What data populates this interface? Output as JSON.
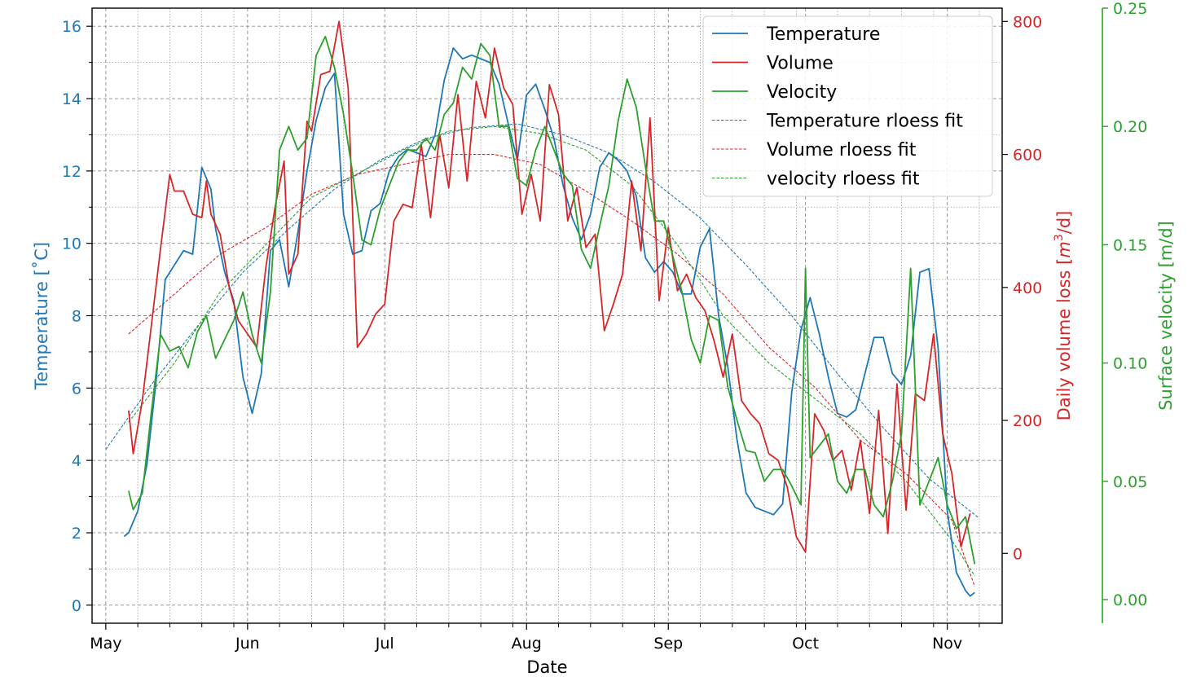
{
  "chart_data": {
    "type": "line",
    "xlabel": "Date",
    "x_tick_labels": [
      "May",
      "Jun",
      "Jul",
      "Aug",
      "Sep",
      "Oct",
      "Nov"
    ],
    "axes": {
      "temperature": {
        "label": "Temperature [˚C]",
        "color": "#1f77b4",
        "ylim": [
          -0.5,
          16.5
        ],
        "ticks": [
          "0",
          "2",
          "4",
          "6",
          "8",
          "10",
          "12",
          "14",
          "16"
        ]
      },
      "volume": {
        "label_prefix": "Daily volume loss [",
        "label_unit": "m",
        "label_sup": "3",
        "label_suffix": "/d]",
        "color": "#d62728",
        "ylim": [
          -105,
          820
        ],
        "ticks": [
          "0",
          "200",
          "400",
          "600",
          "800"
        ]
      },
      "velocity": {
        "label": "Surface velocity [m/d]",
        "color": "#2ca02c",
        "ylim": [
          -0.01,
          0.25
        ],
        "ticks": [
          "0.00",
          "0.05",
          "0.10",
          "0.15",
          "0.20",
          "0.25"
        ]
      }
    },
    "grid": true,
    "legend_position": "top-right",
    "legend": [
      "Temperature",
      "Volume",
      "Velocity",
      "Temperature rloess fit",
      "Volume rloess fit",
      "velocity rloess fit"
    ],
    "series": [
      {
        "name": "Temperature",
        "axis": "temperature",
        "style": "solid",
        "color": "#1f77b4",
        "x": [
          "2019-05-05",
          "2019-05-06",
          "2019-05-08",
          "2019-05-10",
          "2019-05-12",
          "2019-05-14",
          "2019-05-16",
          "2019-05-18",
          "2019-05-20",
          "2019-05-22",
          "2019-05-24",
          "2019-05-25",
          "2019-05-27",
          "2019-05-29",
          "2019-05-31",
          "2019-06-02",
          "2019-06-04",
          "2019-06-06",
          "2019-06-08",
          "2019-06-10",
          "2019-06-12",
          "2019-06-14",
          "2019-06-16",
          "2019-06-18",
          "2019-06-20",
          "2019-06-22",
          "2019-06-24",
          "2019-06-26",
          "2019-06-28",
          "2019-06-30",
          "2019-07-02",
          "2019-07-04",
          "2019-07-06",
          "2019-07-08",
          "2019-07-10",
          "2019-07-12",
          "2019-07-14",
          "2019-07-16",
          "2019-07-18",
          "2019-07-20",
          "2019-07-22",
          "2019-07-24",
          "2019-07-26",
          "2019-07-28",
          "2019-07-30",
          "2019-08-01",
          "2019-08-03",
          "2019-08-05",
          "2019-08-07",
          "2019-08-09",
          "2019-08-11",
          "2019-08-13",
          "2019-08-15",
          "2019-08-17",
          "2019-08-19",
          "2019-08-21",
          "2019-08-23",
          "2019-08-25",
          "2019-08-27",
          "2019-08-29",
          "2019-08-31",
          "2019-09-02",
          "2019-09-04",
          "2019-09-06",
          "2019-09-08",
          "2019-09-10",
          "2019-09-12",
          "2019-09-14",
          "2019-09-16",
          "2019-09-18",
          "2019-09-20",
          "2019-09-22",
          "2019-09-24",
          "2019-09-26",
          "2019-09-28",
          "2019-09-30",
          "2019-10-02",
          "2019-10-04",
          "2019-10-06",
          "2019-10-08",
          "2019-10-10",
          "2019-10-12",
          "2019-10-14",
          "2019-10-16",
          "2019-10-18",
          "2019-10-20",
          "2019-10-22",
          "2019-10-24",
          "2019-10-26",
          "2019-10-28",
          "2019-10-30",
          "2019-11-01",
          "2019-11-03",
          "2019-11-05",
          "2019-11-06",
          "2019-11-07"
        ],
        "y": [
          1.9,
          2.0,
          2.6,
          3.9,
          6.2,
          9.0,
          9.4,
          9.8,
          9.7,
          12.1,
          11.5,
          10.4,
          9.2,
          8.4,
          6.3,
          5.3,
          6.4,
          9.8,
          10.1,
          8.8,
          10.3,
          12.0,
          13.4,
          14.3,
          14.7,
          10.8,
          9.7,
          9.8,
          10.9,
          11.1,
          12.0,
          12.4,
          12.6,
          12.5,
          12.4,
          13.0,
          14.5,
          15.4,
          15.1,
          15.2,
          15.1,
          15.0,
          14.4,
          13.3,
          12.3,
          14.1,
          14.4,
          13.7,
          12.9,
          11.6,
          10.7,
          10.1,
          10.8,
          12.1,
          12.5,
          12.3,
          12.0,
          11.3,
          9.6,
          9.2,
          9.5,
          9.2,
          8.6,
          8.6,
          9.9,
          10.4,
          8.0,
          6.6,
          4.6,
          3.1,
          2.7,
          2.6,
          2.5,
          2.8,
          5.9,
          7.6,
          8.5,
          7.5,
          6.3,
          5.3,
          5.2,
          5.4,
          6.4,
          7.4,
          7.4,
          6.4,
          6.1,
          6.9,
          9.2,
          9.3,
          7.1,
          2.6,
          0.9,
          0.4,
          0.25,
          0.35
        ]
      },
      {
        "name": "Volume",
        "axis": "volume",
        "style": "solid",
        "color": "#d62728",
        "x": [
          "2019-05-06",
          "2019-05-07",
          "2019-05-09",
          "2019-05-11",
          "2019-05-13",
          "2019-05-15",
          "2019-05-16",
          "2019-05-18",
          "2019-05-20",
          "2019-05-22",
          "2019-05-23",
          "2019-05-24",
          "2019-05-26",
          "2019-05-28",
          "2019-05-30",
          "2019-06-01",
          "2019-06-03",
          "2019-06-05",
          "2019-06-07",
          "2019-06-09",
          "2019-06-10",
          "2019-06-12",
          "2019-06-14",
          "2019-06-15",
          "2019-06-17",
          "2019-06-19",
          "2019-06-21",
          "2019-06-23",
          "2019-06-25",
          "2019-06-27",
          "2019-06-29",
          "2019-07-01",
          "2019-07-03",
          "2019-07-05",
          "2019-07-07",
          "2019-07-09",
          "2019-07-11",
          "2019-07-13",
          "2019-07-15",
          "2019-07-17",
          "2019-07-19",
          "2019-07-21",
          "2019-07-23",
          "2019-07-25",
          "2019-07-27",
          "2019-07-29",
          "2019-07-31",
          "2019-08-02",
          "2019-08-04",
          "2019-08-06",
          "2019-08-08",
          "2019-08-10",
          "2019-08-12",
          "2019-08-14",
          "2019-08-16",
          "2019-08-18",
          "2019-08-20",
          "2019-08-22",
          "2019-08-24",
          "2019-08-26",
          "2019-08-28",
          "2019-08-30",
          "2019-09-01",
          "2019-09-03",
          "2019-09-05",
          "2019-09-07",
          "2019-09-09",
          "2019-09-11",
          "2019-09-13",
          "2019-09-15",
          "2019-09-17",
          "2019-09-19",
          "2019-09-21",
          "2019-09-23",
          "2019-09-25",
          "2019-09-27",
          "2019-09-29",
          "2019-10-01",
          "2019-10-03",
          "2019-10-05",
          "2019-10-07",
          "2019-10-09",
          "2019-10-11",
          "2019-10-13",
          "2019-10-15",
          "2019-10-17",
          "2019-10-19",
          "2019-10-21",
          "2019-10-23",
          "2019-10-25",
          "2019-10-27",
          "2019-10-29",
          "2019-10-31",
          "2019-11-02",
          "2019-11-04",
          "2019-11-06"
        ],
        "y": [
          215,
          150,
          230,
          345,
          460,
          570,
          545,
          545,
          510,
          505,
          560,
          510,
          480,
          400,
          350,
          330,
          310,
          430,
          520,
          590,
          420,
          450,
          650,
          635,
          720,
          725,
          800,
          700,
          310,
          330,
          360,
          375,
          500,
          525,
          520,
          615,
          505,
          630,
          550,
          690,
          560,
          710,
          655,
          760,
          700,
          675,
          510,
          570,
          500,
          705,
          660,
          500,
          550,
          460,
          480,
          335,
          375,
          420,
          560,
          455,
          655,
          380,
          490,
          395,
          420,
          385,
          365,
          320,
          265,
          330,
          230,
          210,
          195,
          150,
          140,
          100,
          25,
          2,
          210,
          185,
          140,
          155,
          95,
          170,
          60,
          215,
          30,
          255,
          65,
          240,
          230,
          330,
          180,
          120,
          10,
          60
        ]
      },
      {
        "name": "Velocity",
        "axis": "velocity",
        "style": "solid",
        "color": "#2ca02c",
        "x": [
          "2019-05-06",
          "2019-05-07",
          "2019-05-09",
          "2019-05-11",
          "2019-05-13",
          "2019-05-15",
          "2019-05-17",
          "2019-05-19",
          "2019-05-21",
          "2019-05-23",
          "2019-05-25",
          "2019-05-27",
          "2019-05-29",
          "2019-05-31",
          "2019-06-02",
          "2019-06-04",
          "2019-06-06",
          "2019-06-08",
          "2019-06-10",
          "2019-06-12",
          "2019-06-14",
          "2019-06-16",
          "2019-06-18",
          "2019-06-20",
          "2019-06-22",
          "2019-06-24",
          "2019-06-26",
          "2019-06-28",
          "2019-06-30",
          "2019-07-02",
          "2019-07-04",
          "2019-07-06",
          "2019-07-08",
          "2019-07-10",
          "2019-07-12",
          "2019-07-14",
          "2019-07-16",
          "2019-07-18",
          "2019-07-20",
          "2019-07-22",
          "2019-07-24",
          "2019-07-26",
          "2019-07-28",
          "2019-07-30",
          "2019-08-01",
          "2019-08-03",
          "2019-08-05",
          "2019-08-07",
          "2019-08-09",
          "2019-08-11",
          "2019-08-13",
          "2019-08-15",
          "2019-08-17",
          "2019-08-19",
          "2019-08-21",
          "2019-08-23",
          "2019-08-25",
          "2019-08-27",
          "2019-08-29",
          "2019-08-31",
          "2019-09-02",
          "2019-09-04",
          "2019-09-06",
          "2019-09-08",
          "2019-09-10",
          "2019-09-12",
          "2019-09-14",
          "2019-09-16",
          "2019-09-18",
          "2019-09-20",
          "2019-09-22",
          "2019-09-24",
          "2019-09-26",
          "2019-09-28",
          "2019-09-30",
          "2019-10-01",
          "2019-10-02",
          "2019-10-04",
          "2019-10-06",
          "2019-10-08",
          "2019-10-10",
          "2019-10-12",
          "2019-10-14",
          "2019-10-16",
          "2019-10-18",
          "2019-10-20",
          "2019-10-22",
          "2019-10-24",
          "2019-10-26",
          "2019-10-28",
          "2019-10-30",
          "2019-11-01",
          "2019-11-03",
          "2019-11-05",
          "2019-11-07"
        ],
        "y": [
          0.046,
          0.038,
          0.045,
          0.08,
          0.112,
          0.105,
          0.107,
          0.098,
          0.113,
          0.12,
          0.102,
          0.11,
          0.118,
          0.13,
          0.112,
          0.1,
          0.13,
          0.19,
          0.2,
          0.19,
          0.195,
          0.23,
          0.238,
          0.225,
          0.205,
          0.18,
          0.152,
          0.15,
          0.165,
          0.175,
          0.185,
          0.19,
          0.19,
          0.195,
          0.19,
          0.205,
          0.21,
          0.225,
          0.22,
          0.235,
          0.23,
          0.2,
          0.2,
          0.178,
          0.175,
          0.19,
          0.2,
          0.19,
          0.18,
          0.175,
          0.148,
          0.14,
          0.158,
          0.175,
          0.202,
          0.22,
          0.208,
          0.183,
          0.16,
          0.16,
          0.145,
          0.13,
          0.11,
          0.1,
          0.12,
          0.118,
          0.09,
          0.076,
          0.063,
          0.062,
          0.05,
          0.055,
          0.055,
          0.048,
          0.04,
          0.14,
          0.06,
          0.065,
          0.07,
          0.05,
          0.045,
          0.055,
          0.055,
          0.04,
          0.035,
          0.05,
          0.07,
          0.14,
          0.04,
          0.05,
          0.06,
          0.04,
          0.03,
          0.035,
          0.015
        ]
      },
      {
        "name": "Temperature rloess fit",
        "axis": "temperature",
        "style": "dashed",
        "color": "#1f77b4",
        "x": [
          "2019-05-01",
          "2019-05-11",
          "2019-05-21",
          "2019-05-31",
          "2019-06-10",
          "2019-06-20",
          "2019-06-30",
          "2019-07-10",
          "2019-07-20",
          "2019-07-30",
          "2019-08-09",
          "2019-08-19",
          "2019-08-29",
          "2019-09-08",
          "2019-09-18",
          "2019-09-28",
          "2019-10-08",
          "2019-10-18",
          "2019-10-28",
          "2019-11-08"
        ],
        "y": [
          4.3,
          6.1,
          7.7,
          9.2,
          10.4,
          11.5,
          12.3,
          12.9,
          13.2,
          13.3,
          13.0,
          12.5,
          11.7,
          10.7,
          9.4,
          8.0,
          6.4,
          4.9,
          3.5,
          2.4
        ]
      },
      {
        "name": "Volume rloess fit",
        "axis": "volume",
        "style": "dashed",
        "color": "#d62728",
        "x": [
          "2019-05-06",
          "2019-05-16",
          "2019-05-26",
          "2019-06-05",
          "2019-06-15",
          "2019-06-25",
          "2019-07-05",
          "2019-07-15",
          "2019-07-25",
          "2019-08-04",
          "2019-08-14",
          "2019-08-24",
          "2019-09-03",
          "2019-09-13",
          "2019-09-23",
          "2019-10-03",
          "2019-10-13",
          "2019-10-23",
          "2019-11-02",
          "2019-11-07"
        ],
        "y": [
          330,
          390,
          450,
          490,
          540,
          570,
          585,
          600,
          600,
          585,
          545,
          500,
          450,
          390,
          310,
          250,
          170,
          120,
          50,
          -50
        ]
      },
      {
        "name": "velocity rloess fit",
        "axis": "velocity",
        "style": "dashed",
        "color": "#2ca02c",
        "x": [
          "2019-05-06",
          "2019-05-16",
          "2019-05-26",
          "2019-06-05",
          "2019-06-15",
          "2019-06-25",
          "2019-07-05",
          "2019-07-15",
          "2019-07-25",
          "2019-08-04",
          "2019-08-14",
          "2019-08-24",
          "2019-09-03",
          "2019-09-13",
          "2019-09-23",
          "2019-10-03",
          "2019-10-13",
          "2019-10-23",
          "2019-11-02",
          "2019-11-07"
        ],
        "y": [
          0.075,
          0.1,
          0.13,
          0.15,
          0.17,
          0.18,
          0.19,
          0.198,
          0.2,
          0.197,
          0.19,
          0.175,
          0.15,
          0.12,
          0.1,
          0.085,
          0.07,
          0.05,
          0.025,
          0.01
        ]
      }
    ]
  }
}
